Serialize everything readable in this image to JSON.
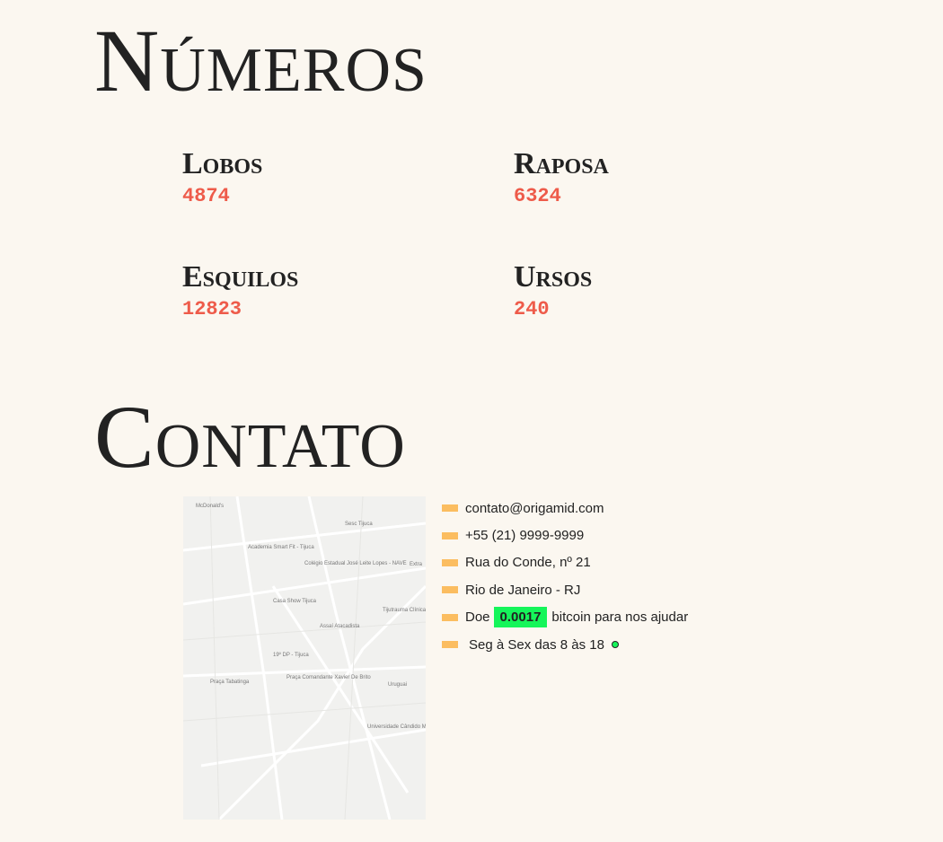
{
  "numeros": {
    "title": "Números",
    "items": [
      {
        "name": "Lobos",
        "value": 4874
      },
      {
        "name": "Raposa",
        "value": 6324
      },
      {
        "name": "Esquilos",
        "value": 12823
      },
      {
        "name": "Ursos",
        "value": 240
      }
    ]
  },
  "contato": {
    "title": "Contato",
    "map_labels": [
      "McDonald's",
      "Sesc Tijuca",
      "Academia Smart Fit - Tijuca",
      "Colégio Estadual José Leite Lopes - NAVE",
      "Casa Show Tijuca",
      "Assaí Atacadista",
      "Tijutrauma Clínica & Hospital",
      "19º DP - Tijuca",
      "Praça Comandante Xavier De Brito",
      "Praça Tabatinga",
      "Uruguai",
      "Universidade Cândido Mendes - Tijuca",
      "Extra"
    ],
    "items": [
      "contato@origamid.com",
      "+55 (21) 9999-9999",
      "Rua do Conde, nº 21",
      "Rio de Janeiro - RJ"
    ],
    "donate": {
      "before": "Doe",
      "amount": "0.0017",
      "after": "bitcoin para nos ajudar"
    },
    "hours": "Seg à Sex das 8 às 18"
  }
}
